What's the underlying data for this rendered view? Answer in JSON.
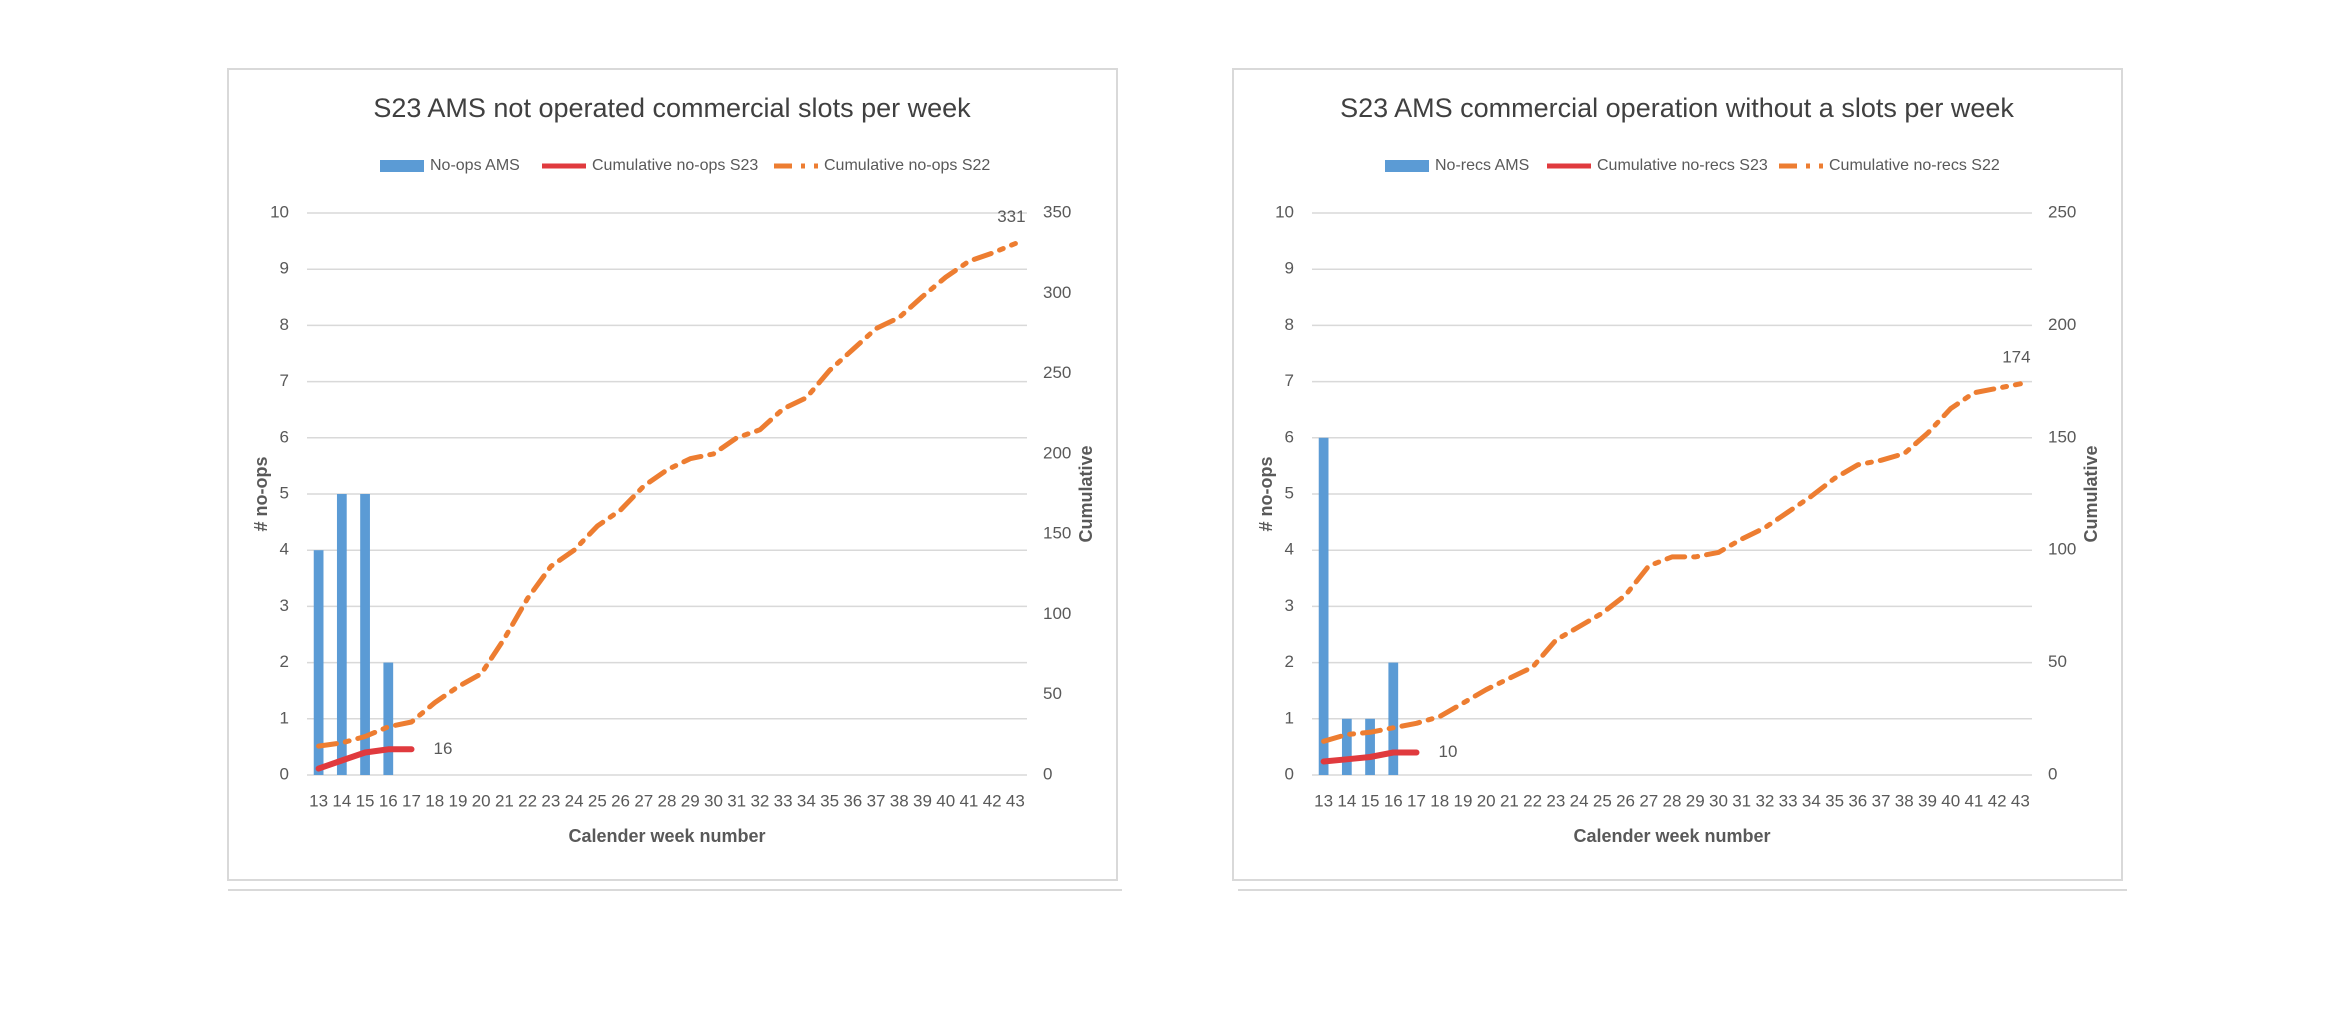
{
  "chart_data": [
    {
      "type": "bar",
      "title": "S23 AMS not operated commercial slots per week",
      "xlabel": "Calender week number",
      "ylabel": "# no-ops",
      "y2label": "Cumulative",
      "categories": [
        "13",
        "14",
        "15",
        "16",
        "17",
        "18",
        "19",
        "20",
        "21",
        "22",
        "23",
        "24",
        "25",
        "26",
        "27",
        "28",
        "29",
        "30",
        "31",
        "32",
        "33",
        "34",
        "35",
        "36",
        "37",
        "38",
        "39",
        "40",
        "41",
        "42",
        "43"
      ],
      "ylim": [
        0,
        10
      ],
      "yticks": [
        0,
        1,
        2,
        3,
        4,
        5,
        6,
        7,
        8,
        9,
        10
      ],
      "y2lim": [
        0,
        350
      ],
      "y2ticks": [
        0,
        50,
        100,
        150,
        200,
        250,
        300,
        350
      ],
      "grid": true,
      "legend": "top",
      "series": [
        {
          "name": "No-ops AMS",
          "type": "bar",
          "color": "#5b9bd5",
          "values": [
            4,
            5,
            5,
            2,
            null,
            null,
            null,
            null,
            null,
            null,
            null,
            null,
            null,
            null,
            null,
            null,
            null,
            null,
            null,
            null,
            null,
            null,
            null,
            null,
            null,
            null,
            null,
            null,
            null,
            null,
            null
          ]
        },
        {
          "name": "Cumulative no-ops S23",
          "type": "line",
          "axis": "y2",
          "color": "#e03a3e",
          "line_style": "solid",
          "show_last_label": true,
          "values": [
            4,
            9,
            14,
            16,
            16,
            null,
            null,
            null,
            null,
            null,
            null,
            null,
            null,
            null,
            null,
            null,
            null,
            null,
            null,
            null,
            null,
            null,
            null,
            null,
            null,
            null,
            null,
            null,
            null,
            null,
            null
          ]
        },
        {
          "name": "Cumulative no-ops S22",
          "type": "line",
          "axis": "y2",
          "color": "#ed7d31",
          "line_style": "dashdot",
          "show_last_label": true,
          "values": [
            18,
            20,
            24,
            30,
            33,
            45,
            55,
            63,
            85,
            110,
            130,
            140,
            155,
            165,
            180,
            190,
            197,
            200,
            210,
            215,
            228,
            235,
            252,
            265,
            278,
            285,
            298,
            310,
            320,
            325,
            331
          ]
        }
      ]
    },
    {
      "type": "bar",
      "title": "S23 AMS commercial operation without a slots per week",
      "xlabel": "Calender week number",
      "ylabel": "# no-ops",
      "y2label": "Cumulative",
      "categories": [
        "13",
        "14",
        "15",
        "16",
        "17",
        "18",
        "19",
        "20",
        "21",
        "22",
        "23",
        "24",
        "25",
        "26",
        "27",
        "28",
        "29",
        "30",
        "31",
        "32",
        "33",
        "34",
        "35",
        "36",
        "37",
        "38",
        "39",
        "40",
        "41",
        "42",
        "43"
      ],
      "ylim": [
        0,
        10
      ],
      "yticks": [
        0,
        1,
        2,
        3,
        4,
        5,
        6,
        7,
        8,
        9,
        10
      ],
      "y2lim": [
        0,
        250
      ],
      "y2ticks": [
        0,
        50,
        100,
        150,
        200,
        250
      ],
      "grid": true,
      "legend": "top",
      "series": [
        {
          "name": "No-recs AMS",
          "type": "bar",
          "color": "#5b9bd5",
          "values": [
            6,
            1,
            1,
            2,
            null,
            null,
            null,
            null,
            null,
            null,
            null,
            null,
            null,
            null,
            null,
            null,
            null,
            null,
            null,
            null,
            null,
            null,
            null,
            null,
            null,
            null,
            null,
            null,
            null,
            null,
            null
          ]
        },
        {
          "name": "Cumulative no-recs S23",
          "type": "line",
          "axis": "y2",
          "color": "#e03a3e",
          "line_style": "solid",
          "show_last_label": true,
          "values": [
            6,
            7,
            8,
            10,
            10,
            null,
            null,
            null,
            null,
            null,
            null,
            null,
            null,
            null,
            null,
            null,
            null,
            null,
            null,
            null,
            null,
            null,
            null,
            null,
            null,
            null,
            null,
            null,
            null,
            null,
            null
          ]
        },
        {
          "name": "Cumulative no-recs S22",
          "type": "line",
          "axis": "y2",
          "color": "#ed7d31",
          "line_style": "dashdot",
          "show_last_label": true,
          "values": [
            15,
            18,
            19,
            21,
            23,
            26,
            32,
            38,
            43,
            48,
            60,
            66,
            72,
            80,
            93,
            97,
            97,
            99,
            105,
            110,
            117,
            124,
            132,
            138,
            140,
            143,
            152,
            163,
            170,
            172,
            174
          ]
        }
      ]
    }
  ]
}
